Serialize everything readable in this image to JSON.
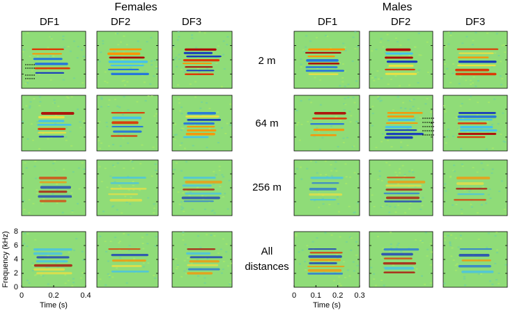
{
  "title_left": "Females",
  "title_right": "Males",
  "female_columns": [
    "DF1",
    "DF2",
    "DF3"
  ],
  "male_columns": [
    "DF1",
    "DF2",
    "DF3"
  ],
  "row_labels": [
    "2 m",
    "64 m",
    "256 m",
    "All distances"
  ],
  "female_axes": {
    "xlim": [
      0,
      0.4
    ],
    "xticks": [
      0,
      0.2,
      0.4
    ],
    "ylim": [
      0,
      8
    ],
    "yticks": [
      0,
      2,
      4,
      6,
      8
    ],
    "xlabel": "Time (s)",
    "ylabel": "Frequency (kHz)"
  },
  "male_axes": {
    "xlim": [
      0,
      0.3
    ],
    "xticks": [
      0,
      0.1,
      0.2,
      0.3
    ],
    "xlabel": "Time (s)"
  }
}
